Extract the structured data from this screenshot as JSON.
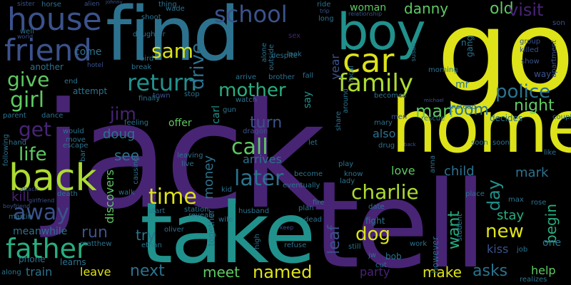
{
  "words": [
    "jack",
    "tell",
    "take",
    "home",
    "go",
    "find",
    "boy",
    "back",
    "car",
    "house",
    "friend",
    "family",
    "father",
    "return",
    "school",
    "mother",
    "sam",
    "call",
    "police",
    "charlie",
    "later",
    "time",
    "girl",
    "give",
    "get",
    "life",
    "away",
    "man",
    "room",
    "night",
    "jim",
    "next",
    "meet",
    "named",
    "run",
    "new",
    "dog",
    "leaf",
    "day",
    "want",
    "drive",
    "turn",
    "woman",
    "danny",
    "old",
    "visit",
    "year",
    "asks",
    "make",
    "child",
    "help",
    "love",
    "doug",
    "see",
    "money",
    "mark",
    "begin",
    "kill",
    "leave",
    "train",
    "party",
    "stay",
    "kiss",
    "arrives",
    "discovers",
    "offer",
    "also",
    "attempt",
    "come",
    "another",
    "meanwhile",
    "phone",
    "try",
    "together",
    "carl",
    "say",
    "mr",
    "gang",
    "killed",
    "apartment",
    "group",
    "show",
    "way",
    "son",
    "men",
    "fight",
    "bob",
    "however",
    "one",
    "realizes",
    "job",
    "couple",
    "like",
    "decides",
    "soon",
    "learns",
    "work",
    "still",
    "end",
    "hotel",
    "daughter",
    "shoot",
    "wade",
    "alien",
    "horse",
    "sister",
    "well",
    "world",
    "bird",
    "break",
    "feeling",
    "would",
    "move",
    "escape",
    "hand",
    "dance",
    "parent",
    "finally",
    "town",
    "stop",
    "watch",
    "gun",
    "dragon",
    "drug",
    "rescue",
    "soon",
    "becomes",
    "morning",
    "relationship",
    "outside",
    "despite",
    "sex",
    "look",
    "alone",
    "arrive",
    "brother",
    "fall",
    "long",
    "ride",
    "trip",
    "reveals",
    "wife",
    "station",
    "start",
    "live",
    "leaving",
    "causing",
    "bar",
    "death",
    "girlfriend",
    "boyfriend",
    "martin",
    "matthew",
    "ethan",
    "oliver",
    "husband",
    "high",
    "refuse",
    "keep",
    "plan",
    "dead",
    "cut",
    "jw",
    "lady",
    "know",
    "become",
    "play",
    "eventually",
    "let",
    "fire",
    "date",
    "place",
    "student",
    "max",
    "rose",
    "along",
    "following",
    "attack",
    "walk",
    "kid",
    "anna",
    "mary",
    "michael",
    "share",
    "around",
    "local",
    "back",
    "instead",
    "susan",
    "johnny",
    "thing",
    "n"
  ],
  "palette": [
    "#482475",
    "#3b528b",
    "#2c728e",
    "#21918c",
    "#28ae80",
    "#5ec962",
    "#addc30",
    "#dde318"
  ]
}
